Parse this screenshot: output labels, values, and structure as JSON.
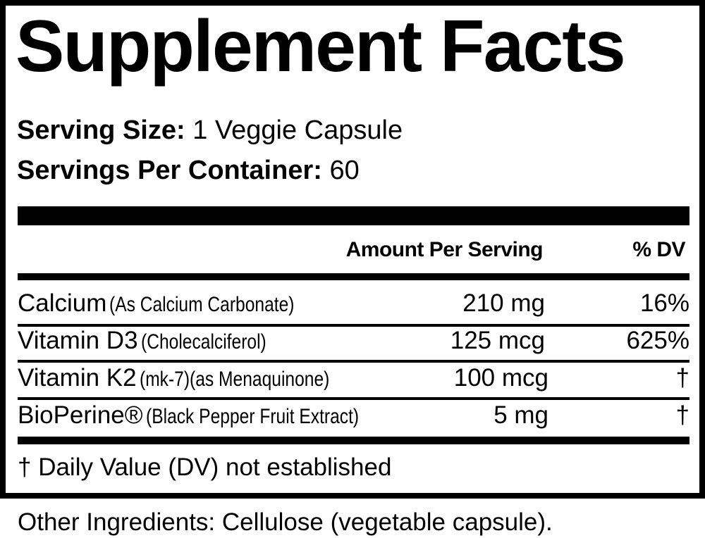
{
  "title": "Supplement Facts",
  "serving_size": {
    "label": "Serving Size:",
    "value": "1 Veggie Capsule"
  },
  "servings_per_container": {
    "label": "Servings Per Container:",
    "value": "60"
  },
  "header": {
    "amount": "Amount Per Serving",
    "dv": "% DV"
  },
  "rows": [
    {
      "name": "Calcium",
      "detail": "(As Calcium Carbonate)",
      "amount": "210 mg",
      "dv": "16%"
    },
    {
      "name": "Vitamin D3",
      "detail": "(Cholecalciferol)",
      "amount": "125 mcg",
      "dv": "625%"
    },
    {
      "name": "Vitamin K2",
      "detail": "(mk-7)(as Menaquinone)",
      "amount": "100 mcg",
      "dv": "†"
    },
    {
      "name": "BioPerine®",
      "detail": "(Black Pepper Fruit Extract)",
      "amount": "5 mg",
      "dv": "†"
    }
  ],
  "footnote": "† Daily Value (DV) not established",
  "other_ingredients": "Other Ingredients: Cellulose (vegetable capsule)."
}
